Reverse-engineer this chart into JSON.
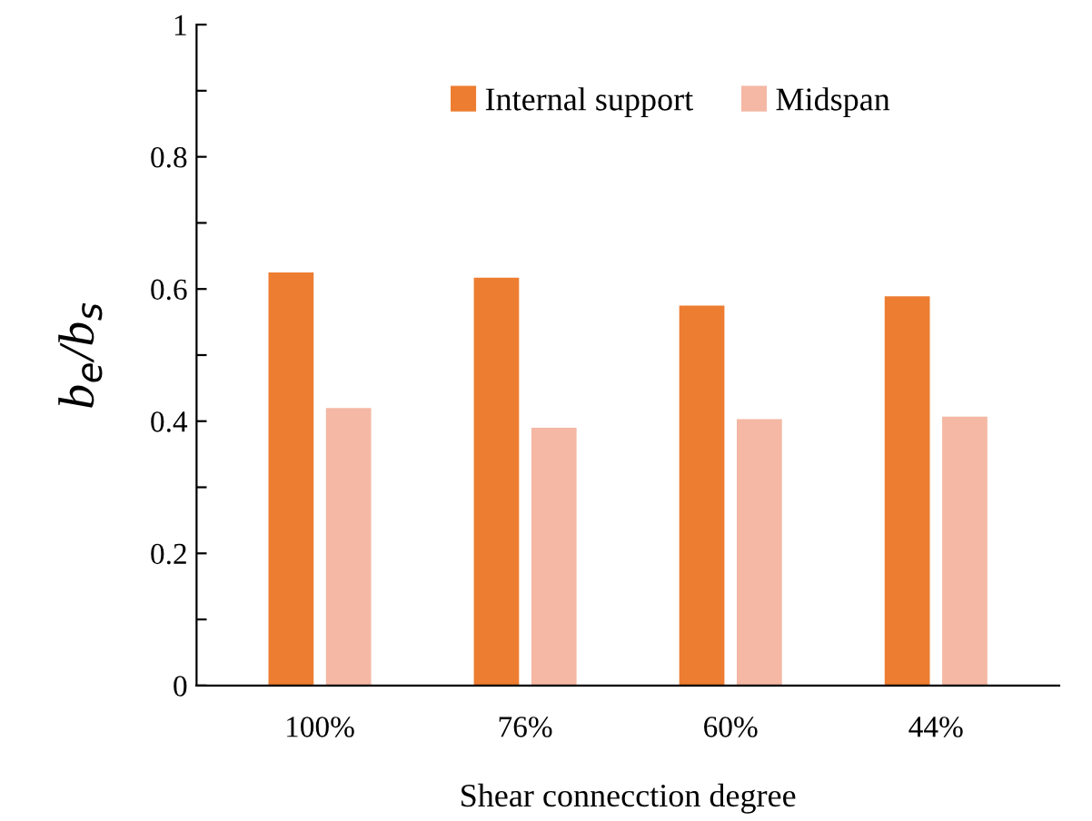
{
  "chart_data": {
    "type": "bar",
    "categories": [
      "100%",
      "76%",
      "60%",
      "44%"
    ],
    "series": [
      {
        "name": "Internal support",
        "color": "#ed7d31",
        "values": [
          0.625,
          0.617,
          0.575,
          0.589
        ]
      },
      {
        "name": "Midspan",
        "color": "#f4b8a4",
        "values": [
          0.42,
          0.39,
          0.403,
          0.407
        ]
      }
    ],
    "xlabel": "Shear connecction degree",
    "ylabel": "b$_{e}$/b$_{s}$",
    "ylim": [
      0,
      1
    ],
    "yticks": [
      0,
      {
        "value": 0.1,
        "label": null
      },
      0.2,
      {
        "value": 0.3,
        "label": null
      },
      0.4,
      {
        "value": 0.5,
        "label": null
      },
      0.6,
      {
        "value": 0.7,
        "label": null
      },
      0.8,
      {
        "value": 0.9,
        "label": null
      },
      1
    ],
    "legend": "top",
    "grid": false
  }
}
